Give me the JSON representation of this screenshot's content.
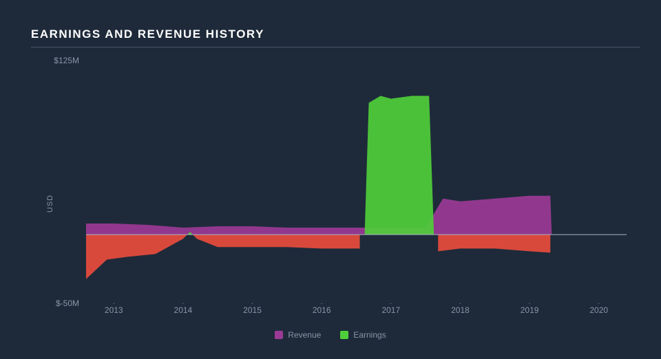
{
  "chart": {
    "type": "area",
    "title": "EARNINGS AND REVENUE HISTORY",
    "background_color": "#1e2a3a",
    "text_color": "#8a94a6",
    "title_color": "#ffffff",
    "title_fontsize": 17,
    "label_fontsize": 12,
    "rule_color": "#4a5568",
    "zero_line_color": "#aab2c0",
    "y_axis": {
      "title": "USD",
      "min": -50,
      "max": 125,
      "ticks": [
        {
          "value": 125,
          "label": "$125M"
        },
        {
          "value": -50,
          "label": "$-50M"
        }
      ]
    },
    "x_axis": {
      "min": 2012.6,
      "max": 2020.4,
      "ticks": [
        2013,
        2014,
        2015,
        2016,
        2017,
        2018,
        2019,
        2020
      ]
    },
    "series": [
      {
        "name": "Revenue",
        "color": "#9b3a96",
        "fill_opacity": 0.92,
        "points": [
          [
            2012.6,
            8
          ],
          [
            2013.0,
            8
          ],
          [
            2013.5,
            7
          ],
          [
            2014.0,
            5
          ],
          [
            2014.5,
            6
          ],
          [
            2015.0,
            6
          ],
          [
            2015.5,
            5
          ],
          [
            2016.0,
            5
          ],
          [
            2016.5,
            5
          ],
          [
            2017.0,
            5
          ],
          [
            2017.5,
            5
          ],
          [
            2017.75,
            26
          ],
          [
            2018.0,
            24
          ],
          [
            2018.5,
            26
          ],
          [
            2019.0,
            28
          ],
          [
            2019.3,
            28
          ],
          [
            2019.32,
            0
          ]
        ]
      },
      {
        "name": "Earnings",
        "color": "#4fce3a",
        "negative_color": "#e84c3d",
        "fill_opacity": 0.92,
        "points": [
          [
            2012.6,
            -32
          ],
          [
            2012.9,
            -18
          ],
          [
            2013.2,
            -16
          ],
          [
            2013.6,
            -14
          ],
          [
            2014.0,
            -3
          ],
          [
            2014.1,
            2
          ],
          [
            2014.2,
            -3
          ],
          [
            2014.5,
            -9
          ],
          [
            2015.0,
            -9
          ],
          [
            2015.5,
            -9
          ],
          [
            2016.0,
            -10
          ],
          [
            2016.4,
            -10
          ],
          [
            2016.55,
            -10
          ],
          [
            2016.62,
            0
          ],
          [
            2016.68,
            95
          ],
          [
            2016.85,
            100
          ],
          [
            2017.0,
            98
          ],
          [
            2017.3,
            100
          ],
          [
            2017.55,
            100
          ],
          [
            2017.62,
            0
          ],
          [
            2017.68,
            -12
          ],
          [
            2018.0,
            -10
          ],
          [
            2018.5,
            -10
          ],
          [
            2019.0,
            -12
          ],
          [
            2019.3,
            -13
          ],
          [
            2019.32,
            0
          ]
        ]
      }
    ],
    "legend": [
      {
        "label": "Revenue",
        "color": "#9b3a96"
      },
      {
        "label": "Earnings",
        "color": "#4fce3a"
      }
    ]
  }
}
